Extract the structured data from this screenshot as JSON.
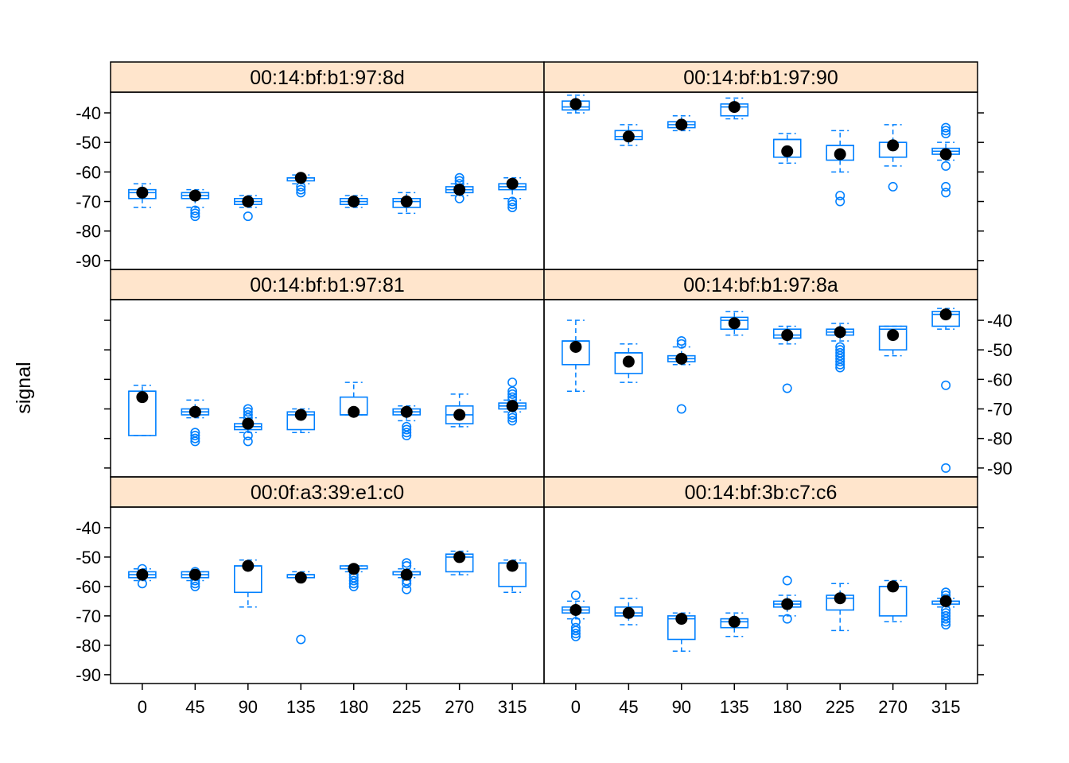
{
  "chart_data": {
    "type": "box",
    "ylabel": "signal",
    "xlabel": "",
    "x_categories": [
      "0",
      "45",
      "90",
      "135",
      "180",
      "225",
      "270",
      "315"
    ],
    "ylim": [
      -93,
      -33
    ],
    "y_ticks": [
      -40,
      -50,
      -60,
      -70,
      -80,
      -90
    ],
    "grid": false,
    "colors": {
      "box": "#0080ff",
      "dot": "#000000",
      "strip": "#ffe5cc",
      "frame": "#000000"
    },
    "panels": [
      {
        "title": "00:0f:a3:39:e1:c0",
        "row": 2,
        "col": 0,
        "boxes": [
          {
            "x": "0",
            "q1": -57,
            "median": -56,
            "q3": -55,
            "lo": -58,
            "hi": -54,
            "mean": -56,
            "outliers": [
              -59,
              -54
            ]
          },
          {
            "x": "45",
            "q1": -57,
            "median": -56,
            "q3": -55,
            "lo": -58,
            "hi": -55,
            "mean": -56,
            "outliers": [
              -59,
              -60,
              -58,
              -55
            ]
          },
          {
            "x": "90",
            "q1": -62,
            "median": -53,
            "q3": -53,
            "lo": -67,
            "hi": -51,
            "mean": -53,
            "outliers": []
          },
          {
            "x": "135",
            "q1": -57,
            "median": -56,
            "q3": -56,
            "lo": -57,
            "hi": -55,
            "mean": -57,
            "outliers": [
              -78
            ]
          },
          {
            "x": "180",
            "q1": -54,
            "median": -54,
            "q3": -53,
            "lo": -55,
            "hi": -53,
            "mean": -54,
            "outliers": [
              -56,
              -57,
              -58,
              -59,
              -60
            ]
          },
          {
            "x": "225",
            "q1": -56,
            "median": -55,
            "q3": -55,
            "lo": -57,
            "hi": -54,
            "mean": -56,
            "outliers": [
              -52,
              -53,
              -58,
              -59,
              -61
            ]
          },
          {
            "x": "270",
            "q1": -55,
            "median": -50,
            "q3": -49,
            "lo": -56,
            "hi": -48,
            "mean": -50,
            "outliers": []
          },
          {
            "x": "315",
            "q1": -60,
            "median": -52,
            "q3": -52,
            "lo": -62,
            "hi": -51,
            "mean": -53,
            "outliers": []
          }
        ]
      },
      {
        "title": "00:14:bf:3b:c7:c6",
        "row": 2,
        "col": 1,
        "boxes": [
          {
            "x": "0",
            "q1": -69,
            "median": -68,
            "q3": -67,
            "lo": -71,
            "hi": -65,
            "mean": -68,
            "outliers": [
              -63,
              -72,
              -74,
              -75,
              -76,
              -77
            ]
          },
          {
            "x": "45",
            "q1": -70,
            "median": -69,
            "q3": -67,
            "lo": -73,
            "hi": -64,
            "mean": -69,
            "outliers": []
          },
          {
            "x": "90",
            "q1": -78,
            "median": -71,
            "q3": -70,
            "lo": -82,
            "hi": -69,
            "mean": -71,
            "outliers": []
          },
          {
            "x": "135",
            "q1": -74,
            "median": -72,
            "q3": -71,
            "lo": -77,
            "hi": -69,
            "mean": -72,
            "outliers": []
          },
          {
            "x": "180",
            "q1": -67,
            "median": -66,
            "q3": -65,
            "lo": -70,
            "hi": -63,
            "mean": -66,
            "outliers": [
              -58,
              -71
            ]
          },
          {
            "x": "225",
            "q1": -68,
            "median": -64,
            "q3": -63,
            "lo": -75,
            "hi": -59,
            "mean": -64,
            "outliers": []
          },
          {
            "x": "270",
            "q1": -70,
            "median": -60,
            "q3": -60,
            "lo": -72,
            "hi": -58,
            "mean": -60,
            "outliers": []
          },
          {
            "x": "315",
            "q1": -66,
            "median": -65,
            "q3": -65,
            "lo": -67,
            "hi": -64,
            "mean": -65,
            "outliers": [
              -62,
              -63,
              -64,
              -68,
              -69,
              -70,
              -71,
              -72,
              -73
            ]
          }
        ]
      },
      {
        "title": "00:14:bf:b1:97:81",
        "row": 1,
        "col": 0,
        "boxes": [
          {
            "x": "0",
            "q1": -79,
            "median": -64,
            "q3": -64,
            "lo": -79,
            "hi": -62,
            "mean": -66,
            "outliers": []
          },
          {
            "x": "45",
            "q1": -72,
            "median": -71,
            "q3": -70,
            "lo": -73,
            "hi": -67,
            "mean": -71,
            "outliers": [
              -78,
              -79,
              -80,
              -81
            ]
          },
          {
            "x": "90",
            "q1": -77,
            "median": -76,
            "q3": -75,
            "lo": -78,
            "hi": -73,
            "mean": -75,
            "outliers": [
              -70,
              -71,
              -72,
              -73,
              -79,
              -81
            ]
          },
          {
            "x": "135",
            "q1": -77,
            "median": -72,
            "q3": -71,
            "lo": -78,
            "hi": -70,
            "mean": -72,
            "outliers": []
          },
          {
            "x": "180",
            "q1": -72,
            "median": -72,
            "q3": -66,
            "lo": -72,
            "hi": -61,
            "mean": -71,
            "outliers": []
          },
          {
            "x": "225",
            "q1": -72,
            "median": -71,
            "q3": -70,
            "lo": -74,
            "hi": -69,
            "mean": -71,
            "outliers": [
              -76,
              -77,
              -78,
              -79
            ]
          },
          {
            "x": "270",
            "q1": -75,
            "median": -72,
            "q3": -69,
            "lo": -76,
            "hi": -65,
            "mean": -72,
            "outliers": []
          },
          {
            "x": "315",
            "q1": -70,
            "median": -69,
            "q3": -68,
            "lo": -71,
            "hi": -67,
            "mean": -69,
            "outliers": [
              -61,
              -64,
              -65,
              -66,
              -67,
              -72,
              -73,
              -74
            ]
          }
        ]
      },
      {
        "title": "00:14:bf:b1:97:8a",
        "row": 1,
        "col": 1,
        "boxes": [
          {
            "x": "0",
            "q1": -55,
            "median": -47,
            "q3": -47,
            "lo": -64,
            "hi": -40,
            "mean": -49,
            "outliers": []
          },
          {
            "x": "45",
            "q1": -58,
            "median": -51,
            "q3": -51,
            "lo": -61,
            "hi": -48,
            "mean": -54,
            "outliers": []
          },
          {
            "x": "90",
            "q1": -54,
            "median": -53,
            "q3": -52,
            "lo": -55,
            "hi": -49,
            "mean": -53,
            "outliers": [
              -47,
              -48,
              -70
            ]
          },
          {
            "x": "135",
            "q1": -43,
            "median": -40,
            "q3": -39,
            "lo": -45,
            "hi": -37,
            "mean": -41,
            "outliers": []
          },
          {
            "x": "180",
            "q1": -46,
            "median": -45,
            "q3": -43,
            "lo": -48,
            "hi": -42,
            "mean": -45,
            "outliers": [
              -63
            ]
          },
          {
            "x": "225",
            "q1": -45,
            "median": -44,
            "q3": -43,
            "lo": -47,
            "hi": -41,
            "mean": -44,
            "outliers": [
              -49,
              -50,
              -51,
              -52,
              -53,
              -54,
              -55,
              -56
            ]
          },
          {
            "x": "270",
            "q1": -50,
            "median": -43,
            "q3": -42,
            "lo": -52,
            "hi": -42,
            "mean": -45,
            "outliers": []
          },
          {
            "x": "315",
            "q1": -42,
            "median": -38,
            "q3": -37,
            "lo": -43,
            "hi": -36,
            "mean": -38,
            "outliers": [
              -62,
              -90
            ]
          }
        ]
      },
      {
        "title": "00:14:bf:b1:97:8d",
        "row": 0,
        "col": 0,
        "boxes": [
          {
            "x": "0",
            "q1": -69,
            "median": -67,
            "q3": -66,
            "lo": -72,
            "hi": -64,
            "mean": -67,
            "outliers": []
          },
          {
            "x": "45",
            "q1": -69,
            "median": -68,
            "q3": -67,
            "lo": -72,
            "hi": -66,
            "mean": -68,
            "outliers": [
              -73,
              -74,
              -75
            ]
          },
          {
            "x": "90",
            "q1": -71,
            "median": -70,
            "q3": -69,
            "lo": -72,
            "hi": -68,
            "mean": -70,
            "outliers": [
              -75
            ]
          },
          {
            "x": "135",
            "q1": -63,
            "median": -62,
            "q3": -62,
            "lo": -64,
            "hi": -61,
            "mean": -62,
            "outliers": [
              -65,
              -66,
              -67
            ]
          },
          {
            "x": "180",
            "q1": -71,
            "median": -70,
            "q3": -69,
            "lo": -72,
            "hi": -68,
            "mean": -70,
            "outliers": []
          },
          {
            "x": "225",
            "q1": -72,
            "median": -70,
            "q3": -69,
            "lo": -74,
            "hi": -67,
            "mean": -70,
            "outliers": []
          },
          {
            "x": "270",
            "q1": -67,
            "median": -66,
            "q3": -65,
            "lo": -68,
            "hi": -64,
            "mean": -66,
            "outliers": [
              -62,
              -63,
              -64,
              -69
            ]
          },
          {
            "x": "315",
            "q1": -66,
            "median": -65,
            "q3": -64,
            "lo": -69,
            "hi": -62,
            "mean": -64,
            "outliers": [
              -70,
              -71,
              -72
            ]
          }
        ]
      },
      {
        "title": "00:14:bf:b1:97:90",
        "row": 0,
        "col": 1,
        "boxes": [
          {
            "x": "0",
            "q1": -39,
            "median": -38,
            "q3": -36,
            "lo": -40,
            "hi": -34,
            "mean": -37,
            "outliers": []
          },
          {
            "x": "45",
            "q1": -49,
            "median": -48,
            "q3": -46,
            "lo": -51,
            "hi": -44,
            "mean": -48,
            "outliers": []
          },
          {
            "x": "90",
            "q1": -45,
            "median": -44,
            "q3": -43,
            "lo": -46,
            "hi": -41,
            "mean": -44,
            "outliers": []
          },
          {
            "x": "135",
            "q1": -41,
            "median": -38,
            "q3": -37,
            "lo": -42,
            "hi": -35,
            "mean": -38,
            "outliers": []
          },
          {
            "x": "180",
            "q1": -55,
            "median": -49,
            "q3": -49,
            "lo": -57,
            "hi": -47,
            "mean": -53,
            "outliers": []
          },
          {
            "x": "225",
            "q1": -56,
            "median": -51,
            "q3": -51,
            "lo": -60,
            "hi": -46,
            "mean": -54,
            "outliers": [
              -68,
              -70
            ]
          },
          {
            "x": "270",
            "q1": -55,
            "median": -50,
            "q3": -50,
            "lo": -58,
            "hi": -44,
            "mean": -51,
            "outliers": [
              -65
            ]
          },
          {
            "x": "315",
            "q1": -54,
            "median": -53,
            "q3": -52,
            "lo": -56,
            "hi": -50,
            "mean": -54,
            "outliers": [
              -45,
              -46,
              -47,
              -58,
              -65,
              -67
            ]
          }
        ]
      }
    ]
  }
}
